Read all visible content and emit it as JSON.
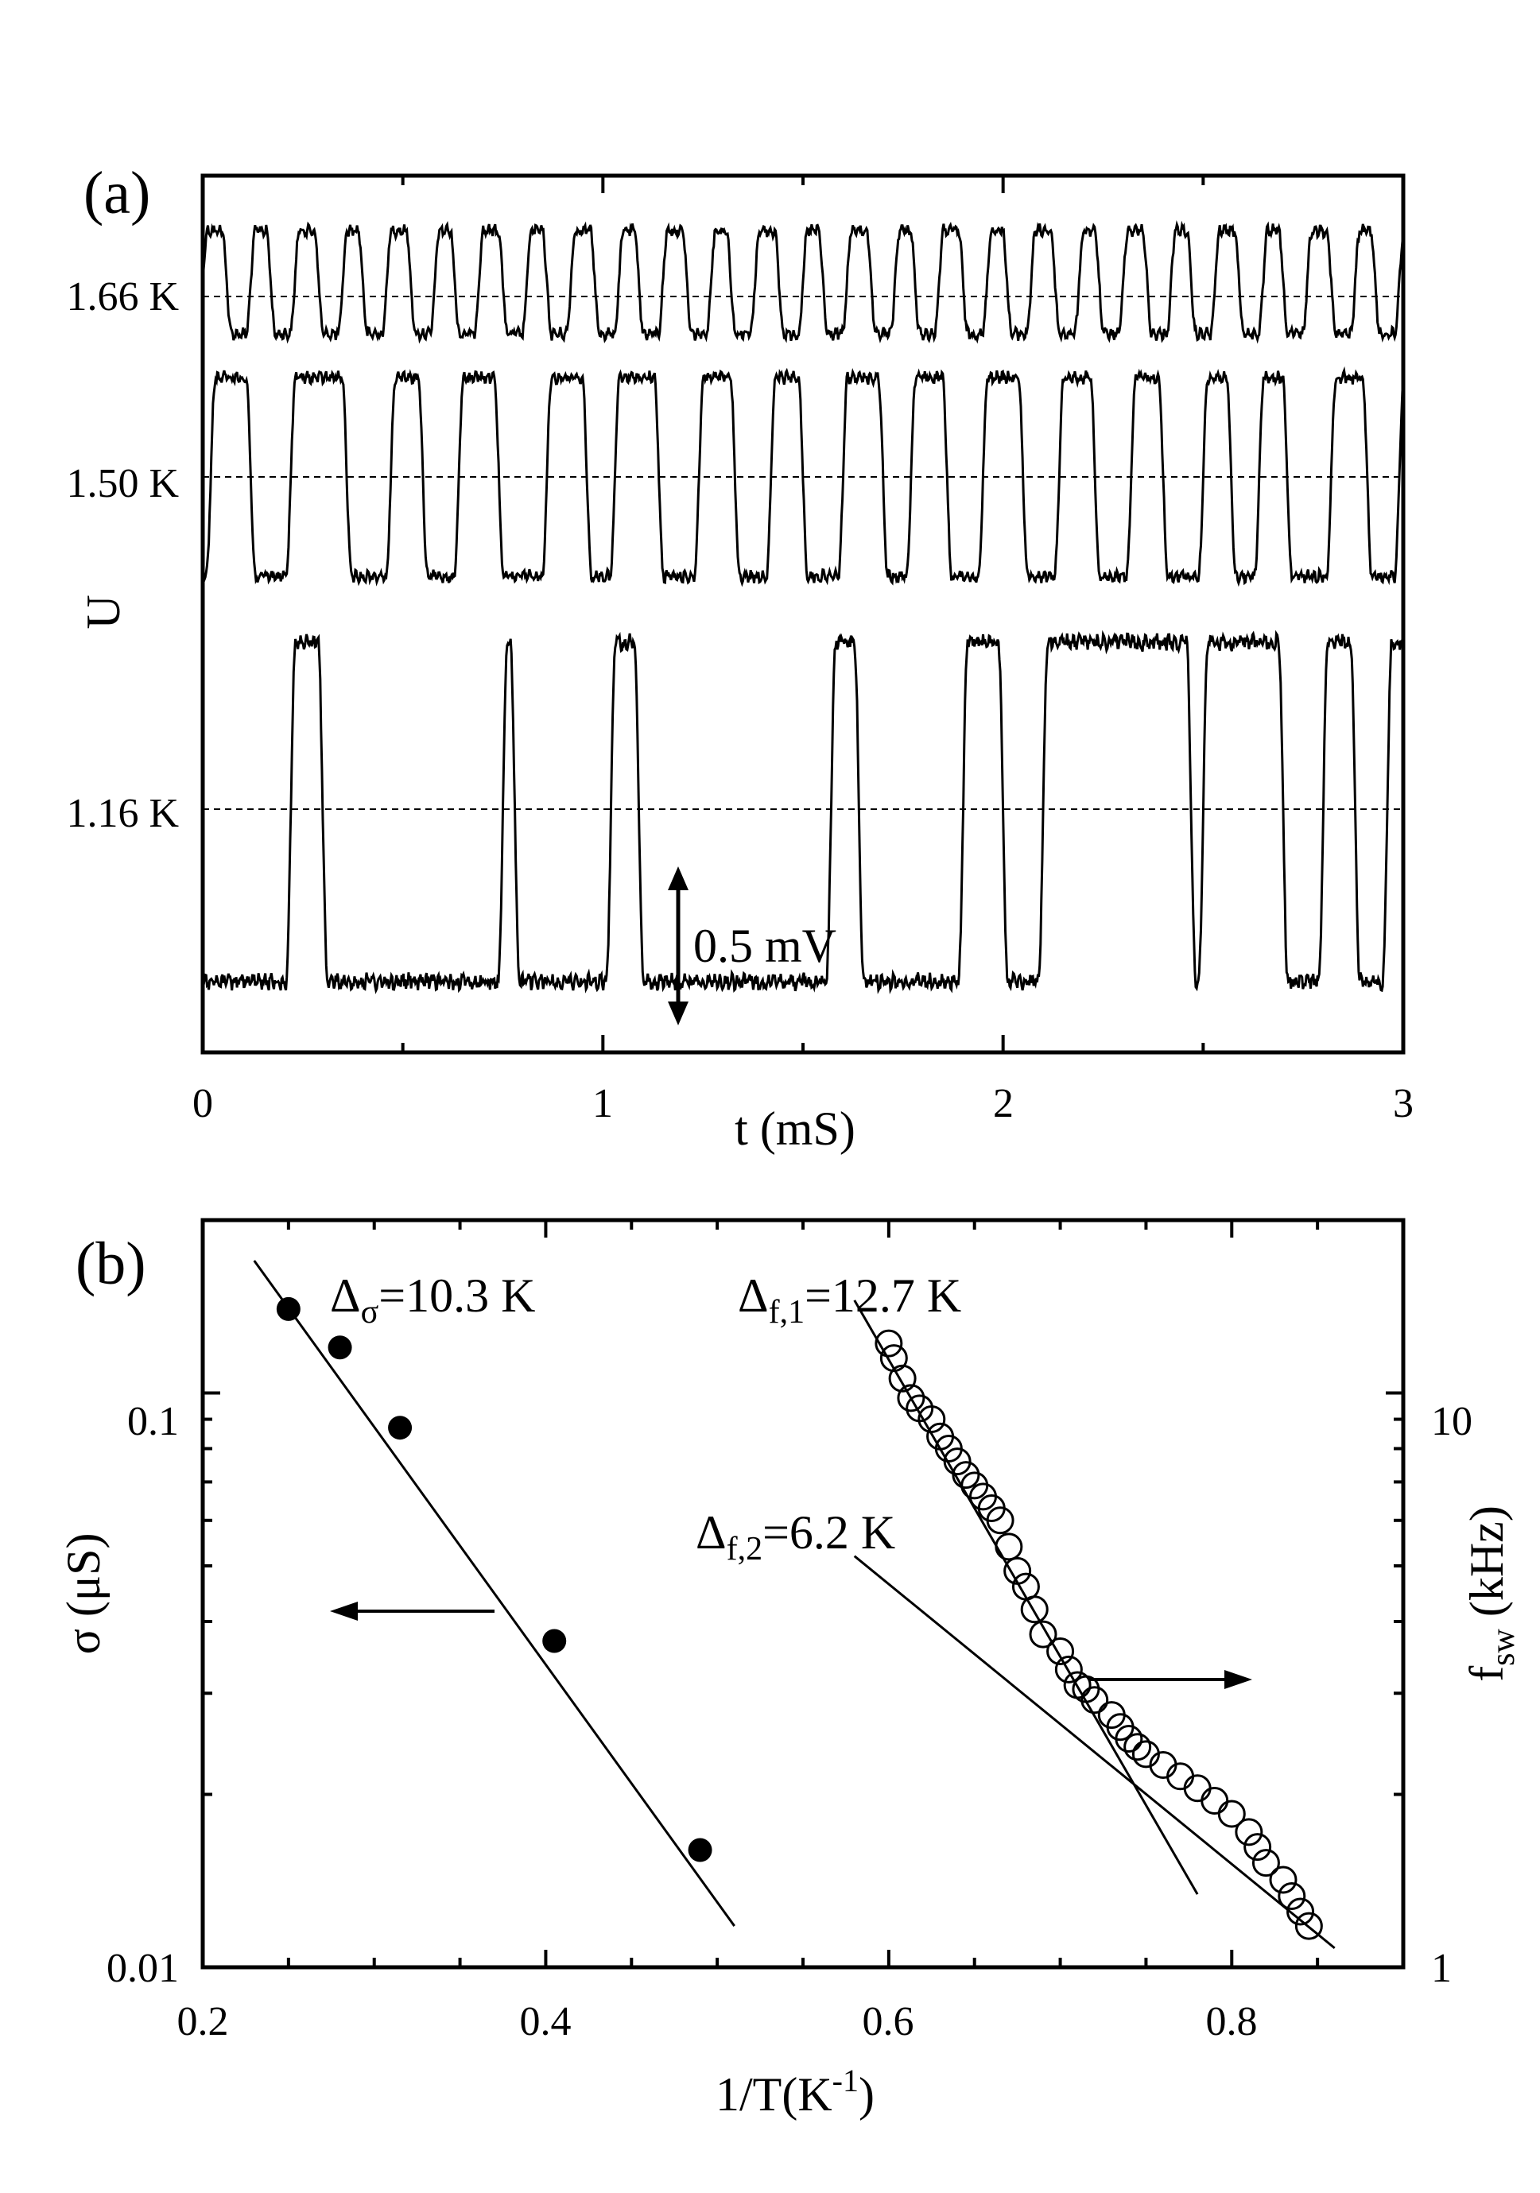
{
  "chart_data": [
    {
      "panel_label": "(a)",
      "type": "line",
      "xlabel": "t (mS)",
      "ylabel": "U",
      "xlim": [
        0,
        3
      ],
      "x_ticks": [
        "0",
        "1",
        "2",
        "3"
      ],
      "scale_bar_label": "0.5 mV",
      "grid": false,
      "series": [
        {
          "name": "1.66 K",
          "switch_times": [
            0.0,
            0.06,
            0.12,
            0.17,
            0.23,
            0.29,
            0.35,
            0.4,
            0.46,
            0.52,
            0.58,
            0.63,
            0.69,
            0.75,
            0.81,
            0.86,
            0.92,
            0.98,
            1.04,
            1.09,
            1.15,
            1.21,
            1.27,
            1.32,
            1.38,
            1.44,
            1.5,
            1.55,
            1.61,
            1.67,
            1.73,
            1.78,
            1.84,
            1.9,
            1.96,
            2.01,
            2.07,
            2.13,
            2.19,
            2.24,
            2.3,
            2.36,
            2.42,
            2.47,
            2.53,
            2.59,
            2.65,
            2.7,
            2.76,
            2.82,
            2.88,
            2.93,
            2.99
          ]
        },
        {
          "name": "1.50 K",
          "switch_times": [
            0.02,
            0.12,
            0.22,
            0.36,
            0.47,
            0.55,
            0.64,
            0.74,
            0.86,
            0.96,
            1.03,
            1.14,
            1.24,
            1.33,
            1.42,
            1.5,
            1.6,
            1.7,
            1.77,
            1.86,
            1.95,
            2.05,
            2.14,
            2.23,
            2.32,
            2.4,
            2.5,
            2.57,
            2.64,
            2.71,
            2.82,
            2.91,
            2.99
          ]
        },
        {
          "name": "1.16 K",
          "switch_times": [
            0.22,
            0.3,
            0.75,
            0.78,
            1.02,
            1.09,
            1.57,
            1.64,
            1.9,
            2.0,
            2.1,
            2.47,
            2.5,
            2.7,
            2.8,
            2.88,
            2.96
          ]
        }
      ]
    },
    {
      "panel_label": "(b)",
      "type": "scatter",
      "xlabel": "1/T(K⁻¹)",
      "xlim": [
        0.2,
        0.9
      ],
      "x_ticks": [
        "0.2",
        "0.4",
        "0.6",
        "0.8"
      ],
      "left_axis": {
        "label": "σ (μS)",
        "scale": "log",
        "ylim": [
          0.01,
          0.2
        ],
        "tick_labels": [
          "0.01",
          "0.1"
        ]
      },
      "right_axis": {
        "label": "f_sw (kHz)",
        "scale": "log",
        "ylim": [
          1,
          20
        ],
        "tick_labels": [
          "1",
          "10"
        ]
      },
      "series": [
        {
          "name": "σ",
          "axis": "left",
          "marker": "filled-circle",
          "x": [
            0.25,
            0.28,
            0.315,
            0.405,
            0.49
          ],
          "y": [
            0.14,
            0.12,
            0.087,
            0.037,
            0.016
          ]
        },
        {
          "name": "f_sw",
          "axis": "right",
          "marker": "open-circle",
          "x": [
            0.6,
            0.603,
            0.608,
            0.613,
            0.618,
            0.625,
            0.63,
            0.635,
            0.64,
            0.645,
            0.65,
            0.655,
            0.66,
            0.665,
            0.67,
            0.675,
            0.68,
            0.685,
            0.69,
            0.7,
            0.705,
            0.71,
            0.715,
            0.72,
            0.73,
            0.735,
            0.74,
            0.745,
            0.75,
            0.76,
            0.77,
            0.78,
            0.79,
            0.8,
            0.81,
            0.815,
            0.82,
            0.83,
            0.835,
            0.84,
            0.845
          ],
          "y": [
            12.2,
            11.5,
            10.6,
            9.8,
            9.4,
            9.0,
            8.4,
            8.0,
            7.6,
            7.2,
            6.9,
            6.6,
            6.3,
            6.0,
            5.4,
            4.9,
            4.6,
            4.2,
            3.8,
            3.55,
            3.3,
            3.1,
            3.05,
            2.92,
            2.75,
            2.62,
            2.5,
            2.42,
            2.35,
            2.25,
            2.15,
            2.05,
            1.95,
            1.85,
            1.72,
            1.62,
            1.52,
            1.42,
            1.33,
            1.25,
            1.18
          ]
        }
      ],
      "fits": [
        {
          "label": "Δσ=10.3 K",
          "axis": "left",
          "from": [
            0.23,
            0.17
          ],
          "to": [
            0.51,
            0.0118
          ]
        },
        {
          "label": "Δf,1=12.7 K",
          "axis": "right",
          "from": [
            0.58,
            14.5
          ],
          "to": [
            0.78,
            1.34
          ]
        },
        {
          "label": "Δf,2=6.2 K",
          "axis": "right",
          "from": [
            0.58,
            5.2
          ],
          "to": [
            0.86,
            1.08
          ]
        }
      ],
      "annotations": {
        "delta_sigma": {
          "symbol": "Δ",
          "sub": "σ",
          "value": "=10.3 K"
        },
        "delta_f1": {
          "symbol": "Δ",
          "sub": "f,1",
          "value": "=12.7 K"
        },
        "delta_f2": {
          "symbol": "Δ",
          "sub": "f,2",
          "value": "=6.2 K"
        },
        "ylabel_right_main": "f",
        "ylabel_right_sub": "sw",
        "ylabel_right_units": " (kHz)",
        "xlabel_main": "1/T(K",
        "xlabel_sup": "-1",
        "xlabel_close": ")"
      }
    }
  ]
}
